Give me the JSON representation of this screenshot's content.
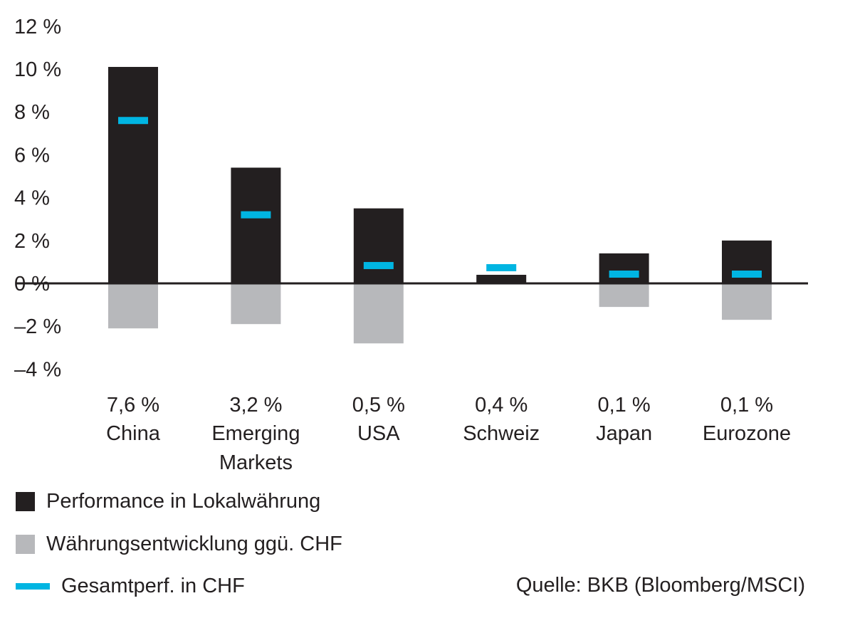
{
  "chart_data": {
    "type": "bar",
    "title": "",
    "xlabel": "",
    "ylabel": "",
    "ylim": [
      -4,
      12
    ],
    "yticks": [
      12,
      10,
      8,
      6,
      4,
      2,
      0,
      -2,
      -4
    ],
    "ytick_labels": [
      "12 %",
      "10 %",
      "8 %",
      "6 %",
      "4 %",
      "2 %",
      "0 %",
      "–2 %",
      "–4 %"
    ],
    "categories": [
      "China",
      "Emerging Markets",
      "USA",
      "Schweiz",
      "Japan",
      "Eurozone"
    ],
    "category_lines": [
      [
        "China"
      ],
      [
        "Emerging",
        "Markets"
      ],
      [
        "USA"
      ],
      [
        "Schweiz"
      ],
      [
        "Japan"
      ],
      [
        "Eurozone"
      ]
    ],
    "total_labels": [
      "7,6 %",
      "3,2 %",
      "0,5 %",
      "0,4 %",
      "0,1 %",
      "0,1 %"
    ],
    "series": [
      {
        "name": "Performance in Lokalwährung",
        "values": [
          10.1,
          5.4,
          3.5,
          0.4,
          1.4,
          2.0
        ],
        "color": "#231f20"
      },
      {
        "name": "Währungsentwicklung ggü. CHF",
        "values": [
          -2.1,
          -1.9,
          -2.8,
          0.0,
          -1.1,
          -1.7
        ],
        "color": "#b7b8bb"
      },
      {
        "name": "Gesamtperf. in CHF",
        "values": [
          7.6,
          3.2,
          0.5,
          0.4,
          0.1,
          0.1
        ],
        "color": "#00b5e2"
      }
    ],
    "legend_position": "bottom-left",
    "grid": false
  },
  "legend": {
    "local": "Performance in Lokalwährung",
    "currency": "Währungsentwicklung ggü. CHF",
    "total": "Gesamtperf. in CHF"
  },
  "source": "Quelle: BKB (Bloomberg/MSCI)",
  "colors": {
    "local": "#231f20",
    "currency": "#b7b8bb",
    "total": "#00b5e2",
    "axis": "#231f20"
  }
}
